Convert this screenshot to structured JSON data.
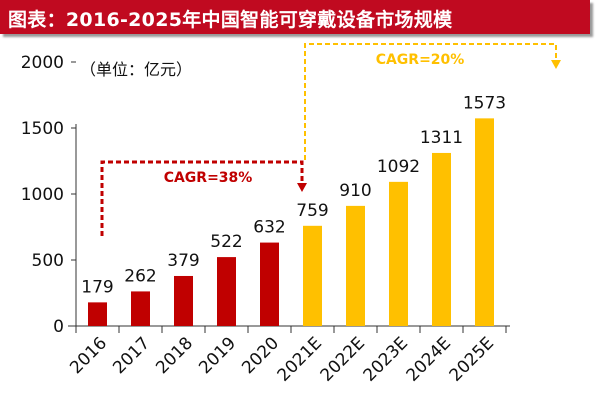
{
  "title": "图表：2016-2025年中国智能可穿戴设备市场规模",
  "chart_data": {
    "type": "bar",
    "title": "图表：2016-2025年中国智能可穿戴设备市场规模",
    "unit_label": "（单位：亿元）",
    "categories": [
      "2016",
      "2017",
      "2018",
      "2019",
      "2020",
      "2021E",
      "2022E",
      "2023E",
      "2024E",
      "2025E"
    ],
    "values": [
      179,
      262,
      379,
      522,
      632,
      759,
      910,
      1092,
      1311,
      1573
    ],
    "ylim": [
      0,
      2000
    ],
    "yticks": [
      0,
      500,
      1000,
      1500,
      2000
    ],
    "grid": false,
    "colors": {
      "actual": "#C00000",
      "forecast": "#FFC000",
      "title_bg": "#C00A20"
    },
    "annotations": [
      {
        "text": "CAGR=38%",
        "from": "2016",
        "to": "2020",
        "color": "#C00000"
      },
      {
        "text": "CAGR=20%",
        "from": "2020",
        "to": "2025E",
        "color": "#FFC000"
      }
    ]
  }
}
